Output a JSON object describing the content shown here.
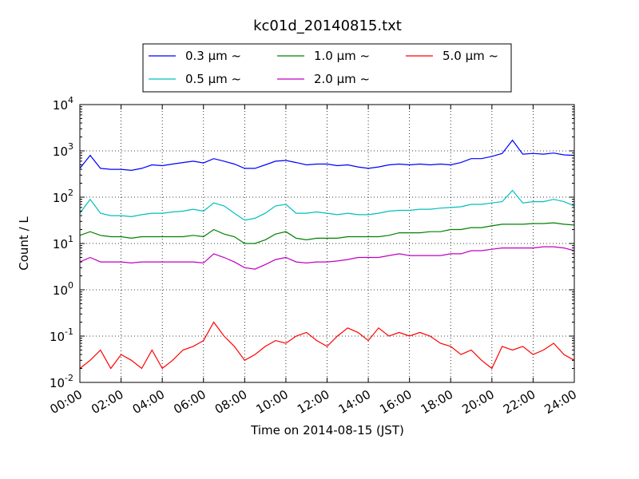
{
  "chart_data": {
    "type": "line",
    "title": "kc01d_20140815.txt",
    "xlabel": "Time on 2014-08-15 (JST)",
    "ylabel": "Count / L",
    "xlim": [
      "00:00",
      "24:00"
    ],
    "ylim": [
      0.01,
      10000
    ],
    "yscale": "log",
    "grid": true,
    "legend_position": "top-center",
    "x_ticks": [
      "00:00",
      "02:00",
      "04:00",
      "06:00",
      "08:00",
      "10:00",
      "12:00",
      "14:00",
      "16:00",
      "18:00",
      "20:00",
      "22:00",
      "24:00"
    ],
    "y_ticks": [
      {
        "base": "10",
        "exp": "-2",
        "value": 0.01
      },
      {
        "base": "10",
        "exp": "-1",
        "value": 0.1
      },
      {
        "base": "10",
        "exp": "0",
        "value": 1
      },
      {
        "base": "10",
        "exp": "1",
        "value": 10
      },
      {
        "base": "10",
        "exp": "2",
        "value": 100
      },
      {
        "base": "10",
        "exp": "3",
        "value": 1000
      },
      {
        "base": "10",
        "exp": "4",
        "value": 10000
      }
    ],
    "legend_suffix": "~",
    "x_hours": [
      0,
      0.5,
      1,
      1.5,
      2,
      2.5,
      3,
      3.5,
      4,
      4.5,
      5,
      5.5,
      6,
      6.5,
      7,
      7.5,
      8,
      8.5,
      9,
      9.5,
      10,
      10.5,
      11,
      11.5,
      12,
      12.5,
      13,
      13.5,
      14,
      14.5,
      15,
      15.5,
      16,
      16.5,
      17,
      17.5,
      18,
      18.5,
      19,
      19.5,
      20,
      20.5,
      21,
      21.5,
      22,
      22.5,
      23,
      23.5,
      24
    ],
    "series": [
      {
        "name": "0.3",
        "unit": "μm",
        "color": "#0000ff",
        "values": [
          420,
          800,
          420,
          400,
          400,
          380,
          420,
          500,
          480,
          520,
          560,
          600,
          550,
          680,
          600,
          520,
          420,
          420,
          500,
          600,
          620,
          560,
          500,
          520,
          520,
          480,
          500,
          450,
          420,
          450,
          500,
          520,
          500,
          520,
          500,
          520,
          500,
          560,
          680,
          680,
          760,
          880,
          1700,
          850,
          880,
          850,
          900,
          820,
          800
        ]
      },
      {
        "name": "0.5",
        "unit": "μm",
        "color": "#00bfbf",
        "values": [
          45,
          90,
          45,
          40,
          40,
          38,
          42,
          45,
          45,
          48,
          50,
          55,
          50,
          75,
          65,
          45,
          32,
          35,
          45,
          65,
          70,
          45,
          45,
          48,
          45,
          42,
          45,
          42,
          42,
          45,
          50,
          52,
          52,
          55,
          55,
          58,
          60,
          62,
          70,
          70,
          75,
          80,
          140,
          75,
          80,
          80,
          90,
          80,
          65
        ]
      },
      {
        "name": "1.0",
        "unit": "μm",
        "color": "#008000",
        "values": [
          15,
          18,
          15,
          14,
          14,
          13,
          14,
          14,
          14,
          14,
          14,
          15,
          14,
          20,
          16,
          14,
          10,
          10,
          12,
          16,
          18,
          13,
          12,
          13,
          13,
          13,
          14,
          14,
          14,
          14,
          15,
          17,
          17,
          17,
          18,
          18,
          20,
          20,
          22,
          22,
          24,
          26,
          26,
          26,
          27,
          27,
          28,
          26,
          25
        ]
      },
      {
        "name": "2.0",
        "unit": "μm",
        "color": "#bf00bf",
        "values": [
          4,
          5,
          4,
          4,
          4,
          3.8,
          4,
          4,
          4,
          4,
          4,
          4,
          3.8,
          6,
          5,
          4,
          3,
          2.8,
          3.5,
          4.5,
          5,
          4,
          3.8,
          4,
          4,
          4.2,
          4.5,
          5,
          5,
          5,
          5.5,
          6,
          5.5,
          5.5,
          5.5,
          5.5,
          6,
          6,
          7,
          7,
          7.5,
          8,
          8,
          8,
          8,
          8.5,
          8.5,
          8,
          7
        ]
      },
      {
        "name": "5.0",
        "unit": "μm",
        "color": "#ff0000",
        "values": [
          0.02,
          0.03,
          0.05,
          0.02,
          0.04,
          0.03,
          0.02,
          0.05,
          0.02,
          0.03,
          0.05,
          0.06,
          0.08,
          0.2,
          0.1,
          0.06,
          0.03,
          0.04,
          0.06,
          0.08,
          0.07,
          0.1,
          0.12,
          0.08,
          0.06,
          0.1,
          0.15,
          0.12,
          0.08,
          0.15,
          0.1,
          0.12,
          0.1,
          0.12,
          0.1,
          0.07,
          0.06,
          0.04,
          0.05,
          0.03,
          0.02,
          0.06,
          0.05,
          0.06,
          0.04,
          0.05,
          0.07,
          0.04,
          0.03
        ]
      }
    ]
  }
}
